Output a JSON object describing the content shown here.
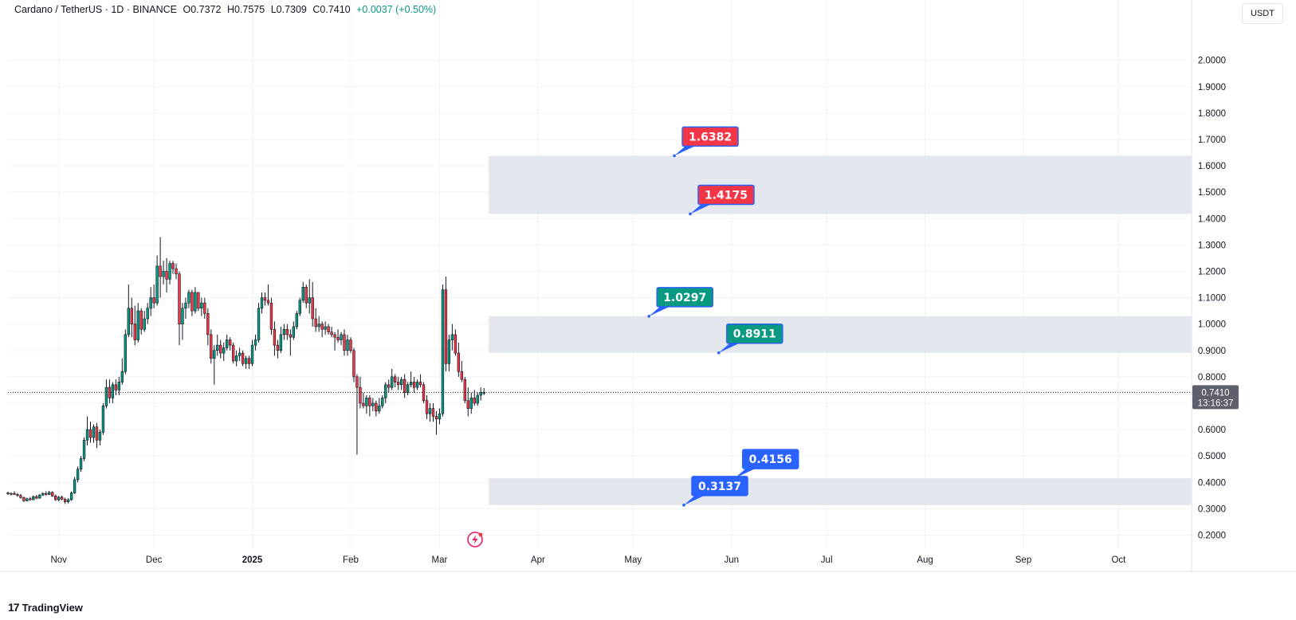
{
  "header": {
    "symbol": "Cardano / TetherUS · 1D · BINANCE",
    "open": "O0.7372",
    "high": "H0.7575",
    "low": "L0.7309",
    "close": "C0.7410",
    "change": "+0.0037 (+0.50%)"
  },
  "currency_button": "USDT",
  "brand": {
    "mark": "17",
    "name": "TradingView"
  },
  "price_tag": {
    "price": "0.7410",
    "countdown": "13:16:37"
  },
  "colors": {
    "up": "#089981",
    "down": "#f23645",
    "zone_fill": "#e0e3eb",
    "label_red": "#f23645",
    "label_green": "#089981",
    "label_blue": "#2962ff"
  },
  "chart_data": {
    "type": "candlestick",
    "title": "Cardano / TetherUS · 1D · BINANCE",
    "ylim": [
      0.15,
      2.15
    ],
    "y_ticks": [
      "2.0000",
      "1.9000",
      "1.8000",
      "1.7000",
      "1.6000",
      "1.5000",
      "1.4000",
      "1.3000",
      "1.2000",
      "1.1000",
      "1.0000",
      "0.9000",
      "0.8000",
      "0.7000",
      "0.6000",
      "0.5000",
      "0.4000",
      "0.3000",
      "0.2000"
    ],
    "x_start": "2024-10-16",
    "x_end": "2025-10-24",
    "x_ticks": [
      {
        "date": "2024-11-01",
        "label": "Nov"
      },
      {
        "date": "2024-12-01",
        "label": "Dec"
      },
      {
        "date": "2025-01-01",
        "label": "2025"
      },
      {
        "date": "2025-02-01",
        "label": "Feb"
      },
      {
        "date": "2025-03-01",
        "label": "Mar"
      },
      {
        "date": "2025-04-01",
        "label": "Apr"
      },
      {
        "date": "2025-05-01",
        "label": "May"
      },
      {
        "date": "2025-06-01",
        "label": "Jun"
      },
      {
        "date": "2025-07-01",
        "label": "Jul"
      },
      {
        "date": "2025-08-01",
        "label": "Aug"
      },
      {
        "date": "2025-09-01",
        "label": "Sep"
      },
      {
        "date": "2025-10-01",
        "label": "Oct"
      }
    ],
    "candles": [
      [
        "2024-10-16",
        0.36,
        0.365,
        0.352,
        0.356
      ],
      [
        "2024-10-17",
        0.356,
        0.362,
        0.35,
        0.358
      ],
      [
        "2024-10-18",
        0.358,
        0.366,
        0.352,
        0.354
      ],
      [
        "2024-10-19",
        0.354,
        0.36,
        0.345,
        0.35
      ],
      [
        "2024-10-20",
        0.35,
        0.356,
        0.338,
        0.342
      ],
      [
        "2024-10-21",
        0.342,
        0.346,
        0.326,
        0.33
      ],
      [
        "2024-10-22",
        0.33,
        0.342,
        0.328,
        0.338
      ],
      [
        "2024-10-23",
        0.338,
        0.345,
        0.33,
        0.334
      ],
      [
        "2024-10-24",
        0.334,
        0.35,
        0.332,
        0.346
      ],
      [
        "2024-10-25",
        0.346,
        0.352,
        0.336,
        0.34
      ],
      [
        "2024-10-26",
        0.34,
        0.356,
        0.338,
        0.352
      ],
      [
        "2024-10-27",
        0.352,
        0.362,
        0.348,
        0.358
      ],
      [
        "2024-10-28",
        0.358,
        0.366,
        0.35,
        0.354
      ],
      [
        "2024-10-29",
        0.354,
        0.368,
        0.352,
        0.362
      ],
      [
        "2024-10-30",
        0.362,
        0.366,
        0.345,
        0.348
      ],
      [
        "2024-10-31",
        0.348,
        0.354,
        0.33,
        0.334
      ],
      [
        "2024-11-01",
        0.334,
        0.348,
        0.328,
        0.344
      ],
      [
        "2024-11-02",
        0.344,
        0.35,
        0.332,
        0.336
      ],
      [
        "2024-11-03",
        0.336,
        0.342,
        0.318,
        0.326
      ],
      [
        "2024-11-04",
        0.326,
        0.34,
        0.32,
        0.334
      ],
      [
        "2024-11-05",
        0.334,
        0.366,
        0.33,
        0.36
      ],
      [
        "2024-11-06",
        0.36,
        0.42,
        0.356,
        0.41
      ],
      [
        "2024-11-07",
        0.41,
        0.46,
        0.4,
        0.45
      ],
      [
        "2024-11-08",
        0.45,
        0.5,
        0.44,
        0.49
      ],
      [
        "2024-11-09",
        0.49,
        0.57,
        0.48,
        0.56
      ],
      [
        "2024-11-10",
        0.56,
        0.65,
        0.54,
        0.6
      ],
      [
        "2024-11-11",
        0.6,
        0.63,
        0.55,
        0.57
      ],
      [
        "2024-11-12",
        0.57,
        0.62,
        0.55,
        0.61
      ],
      [
        "2024-11-13",
        0.61,
        0.625,
        0.53,
        0.56
      ],
      [
        "2024-11-14",
        0.56,
        0.6,
        0.54,
        0.59
      ],
      [
        "2024-11-15",
        0.59,
        0.7,
        0.58,
        0.69
      ],
      [
        "2024-11-16",
        0.69,
        0.79,
        0.68,
        0.76
      ],
      [
        "2024-11-17",
        0.76,
        0.79,
        0.7,
        0.72
      ],
      [
        "2024-11-18",
        0.72,
        0.78,
        0.7,
        0.77
      ],
      [
        "2024-11-19",
        0.77,
        0.79,
        0.73,
        0.75
      ],
      [
        "2024-11-20",
        0.75,
        0.8,
        0.73,
        0.78
      ],
      [
        "2024-11-21",
        0.78,
        0.87,
        0.77,
        0.82
      ],
      [
        "2024-11-22",
        0.82,
        0.98,
        0.81,
        0.96
      ],
      [
        "2024-11-23",
        0.96,
        1.15,
        0.95,
        1.06
      ],
      [
        "2024-11-24",
        1.06,
        1.1,
        0.95,
        1.0
      ],
      [
        "2024-11-25",
        1.0,
        1.07,
        0.92,
        0.94
      ],
      [
        "2024-11-26",
        0.94,
        1.08,
        0.93,
        1.05
      ],
      [
        "2024-11-27",
        1.05,
        1.06,
        0.96,
        0.98
      ],
      [
        "2024-11-28",
        0.98,
        1.05,
        0.97,
        1.02
      ],
      [
        "2024-11-29",
        1.02,
        1.08,
        1.0,
        1.06
      ],
      [
        "2024-11-30",
        1.06,
        1.14,
        1.03,
        1.1
      ],
      [
        "2024-12-01",
        1.1,
        1.15,
        1.06,
        1.08
      ],
      [
        "2024-12-02",
        1.08,
        1.26,
        1.07,
        1.22
      ],
      [
        "2024-12-03",
        1.22,
        1.33,
        1.1,
        1.18
      ],
      [
        "2024-12-04",
        1.18,
        1.24,
        1.15,
        1.2
      ],
      [
        "2024-12-05",
        1.2,
        1.25,
        1.12,
        1.17
      ],
      [
        "2024-12-06",
        1.17,
        1.24,
        1.15,
        1.23
      ],
      [
        "2024-12-07",
        1.23,
        1.24,
        1.19,
        1.21
      ],
      [
        "2024-12-08",
        1.21,
        1.23,
        1.17,
        1.19
      ],
      [
        "2024-12-09",
        1.19,
        1.2,
        0.92,
        1.0
      ],
      [
        "2024-12-10",
        1.0,
        1.08,
        0.94,
        1.06
      ],
      [
        "2024-12-11",
        1.06,
        1.1,
        1.02,
        1.08
      ],
      [
        "2024-12-12",
        1.08,
        1.13,
        1.06,
        1.12
      ],
      [
        "2024-12-13",
        1.12,
        1.13,
        1.03,
        1.05
      ],
      [
        "2024-12-14",
        1.05,
        1.14,
        1.04,
        1.12
      ],
      [
        "2024-12-15",
        1.12,
        1.12,
        1.05,
        1.06
      ],
      [
        "2024-12-16",
        1.06,
        1.1,
        1.03,
        1.08
      ],
      [
        "2024-12-17",
        1.08,
        1.1,
        1.02,
        1.04
      ],
      [
        "2024-12-18",
        1.04,
        1.06,
        0.92,
        0.96
      ],
      [
        "2024-12-19",
        0.96,
        0.98,
        0.85,
        0.87
      ],
      [
        "2024-12-20",
        0.87,
        0.92,
        0.77,
        0.9
      ],
      [
        "2024-12-21",
        0.9,
        0.96,
        0.88,
        0.92
      ],
      [
        "2024-12-22",
        0.92,
        0.94,
        0.87,
        0.89
      ],
      [
        "2024-12-23",
        0.89,
        0.93,
        0.86,
        0.91
      ],
      [
        "2024-12-24",
        0.91,
        0.96,
        0.9,
        0.94
      ],
      [
        "2024-12-25",
        0.94,
        0.95,
        0.9,
        0.92
      ],
      [
        "2024-12-26",
        0.92,
        0.93,
        0.85,
        0.86
      ],
      [
        "2024-12-27",
        0.86,
        0.9,
        0.84,
        0.88
      ],
      [
        "2024-12-28",
        0.88,
        0.91,
        0.86,
        0.89
      ],
      [
        "2024-12-29",
        0.89,
        0.9,
        0.84,
        0.85
      ],
      [
        "2024-12-30",
        0.85,
        0.88,
        0.83,
        0.87
      ],
      [
        "2024-12-31",
        0.87,
        0.88,
        0.83,
        0.85
      ],
      [
        "2025-01-01",
        0.85,
        0.94,
        0.84,
        0.92
      ],
      [
        "2025-01-02",
        0.92,
        0.96,
        0.9,
        0.94
      ],
      [
        "2025-01-03",
        0.94,
        1.08,
        0.93,
        1.06
      ],
      [
        "2025-01-04",
        1.06,
        1.12,
        1.04,
        1.1
      ],
      [
        "2025-01-05",
        1.1,
        1.12,
        1.07,
        1.09
      ],
      [
        "2025-01-06",
        1.09,
        1.15,
        1.07,
        1.08
      ],
      [
        "2025-01-07",
        1.08,
        1.1,
        0.96,
        0.98
      ],
      [
        "2025-01-08",
        0.98,
        1.01,
        0.88,
        0.92
      ],
      [
        "2025-01-09",
        0.92,
        0.94,
        0.87,
        0.9
      ],
      [
        "2025-01-10",
        0.9,
        0.99,
        0.89,
        0.96
      ],
      [
        "2025-01-11",
        0.96,
        1.0,
        0.94,
        0.98
      ],
      [
        "2025-01-12",
        0.98,
        1.0,
        0.94,
        0.96
      ],
      [
        "2025-01-13",
        0.96,
        0.98,
        0.88,
        0.95
      ],
      [
        "2025-01-14",
        0.95,
        1.01,
        0.94,
        0.99
      ],
      [
        "2025-01-15",
        0.99,
        1.05,
        0.98,
        1.04
      ],
      [
        "2025-01-16",
        1.04,
        1.1,
        1.03,
        1.09
      ],
      [
        "2025-01-17",
        1.09,
        1.16,
        1.08,
        1.14
      ],
      [
        "2025-01-18",
        1.14,
        1.15,
        1.06,
        1.08
      ],
      [
        "2025-01-19",
        1.08,
        1.17,
        1.04,
        1.1
      ],
      [
        "2025-01-20",
        1.1,
        1.16,
        0.99,
        1.02
      ],
      [
        "2025-01-21",
        1.02,
        1.06,
        0.97,
        0.99
      ],
      [
        "2025-01-22",
        0.99,
        1.03,
        0.97,
        1.0
      ],
      [
        "2025-01-23",
        1.0,
        1.01,
        0.95,
        0.98
      ],
      [
        "2025-01-24",
        0.98,
        1.01,
        0.96,
        0.99
      ],
      [
        "2025-01-25",
        0.99,
        1.0,
        0.96,
        0.97
      ],
      [
        "2025-01-26",
        0.97,
        0.99,
        0.95,
        0.96
      ],
      [
        "2025-01-27",
        0.96,
        0.97,
        0.9,
        0.95
      ],
      [
        "2025-01-28",
        0.95,
        0.98,
        0.93,
        0.94
      ],
      [
        "2025-01-29",
        0.94,
        0.97,
        0.92,
        0.96
      ],
      [
        "2025-01-30",
        0.96,
        0.98,
        0.88,
        0.9
      ],
      [
        "2025-01-31",
        0.9,
        0.96,
        0.88,
        0.94
      ],
      [
        "2025-02-01",
        0.94,
        0.95,
        0.89,
        0.9
      ],
      [
        "2025-02-02",
        0.9,
        0.91,
        0.78,
        0.8
      ],
      [
        "2025-02-03",
        0.8,
        0.81,
        0.505,
        0.76
      ],
      [
        "2025-02-04",
        0.76,
        0.8,
        0.68,
        0.7
      ],
      [
        "2025-02-05",
        0.7,
        0.74,
        0.68,
        0.69
      ],
      [
        "2025-02-06",
        0.69,
        0.73,
        0.66,
        0.72
      ],
      [
        "2025-02-07",
        0.72,
        0.73,
        0.65,
        0.69
      ],
      [
        "2025-02-08",
        0.69,
        0.72,
        0.67,
        0.7
      ],
      [
        "2025-02-09",
        0.7,
        0.71,
        0.65,
        0.67
      ],
      [
        "2025-02-10",
        0.67,
        0.72,
        0.66,
        0.69
      ],
      [
        "2025-02-11",
        0.69,
        0.73,
        0.68,
        0.72
      ],
      [
        "2025-02-12",
        0.72,
        0.78,
        0.7,
        0.77
      ],
      [
        "2025-02-13",
        0.77,
        0.79,
        0.74,
        0.76
      ],
      [
        "2025-02-14",
        0.76,
        0.83,
        0.75,
        0.8
      ],
      [
        "2025-02-15",
        0.8,
        0.81,
        0.76,
        0.78
      ],
      [
        "2025-02-16",
        0.78,
        0.8,
        0.75,
        0.77
      ],
      [
        "2025-02-17",
        0.77,
        0.8,
        0.75,
        0.79
      ],
      [
        "2025-02-18",
        0.79,
        0.81,
        0.72,
        0.74
      ],
      [
        "2025-02-19",
        0.74,
        0.78,
        0.73,
        0.77
      ],
      [
        "2025-02-20",
        0.77,
        0.82,
        0.76,
        0.78
      ],
      [
        "2025-02-21",
        0.78,
        0.8,
        0.74,
        0.76
      ],
      [
        "2025-02-22",
        0.76,
        0.79,
        0.75,
        0.78
      ],
      [
        "2025-02-23",
        0.78,
        0.81,
        0.76,
        0.77
      ],
      [
        "2025-02-24",
        0.77,
        0.78,
        0.7,
        0.71
      ],
      [
        "2025-02-25",
        0.71,
        0.73,
        0.64,
        0.66
      ],
      [
        "2025-02-26",
        0.66,
        0.7,
        0.63,
        0.68
      ],
      [
        "2025-02-27",
        0.68,
        0.7,
        0.63,
        0.65
      ],
      [
        "2025-02-28",
        0.65,
        0.67,
        0.58,
        0.64
      ],
      [
        "2025-03-01",
        0.64,
        0.68,
        0.62,
        0.66
      ],
      [
        "2025-03-02",
        0.66,
        1.15,
        0.65,
        1.13
      ],
      [
        "2025-03-03",
        1.13,
        1.18,
        0.82,
        0.85
      ],
      [
        "2025-03-04",
        0.85,
        0.96,
        0.82,
        0.94
      ],
      [
        "2025-03-05",
        0.94,
        1.0,
        0.9,
        0.96
      ],
      [
        "2025-03-06",
        0.96,
        0.98,
        0.88,
        0.89
      ],
      [
        "2025-03-07",
        0.89,
        0.93,
        0.8,
        0.82
      ],
      [
        "2025-03-08",
        0.82,
        0.86,
        0.78,
        0.79
      ],
      [
        "2025-03-09",
        0.79,
        0.8,
        0.7,
        0.71
      ],
      [
        "2025-03-10",
        0.71,
        0.76,
        0.65,
        0.68
      ],
      [
        "2025-03-11",
        0.68,
        0.74,
        0.66,
        0.72
      ],
      [
        "2025-03-12",
        0.72,
        0.75,
        0.69,
        0.7
      ],
      [
        "2025-03-13",
        0.7,
        0.74,
        0.69,
        0.73
      ],
      [
        "2025-03-14",
        0.73,
        0.76,
        0.71,
        0.74
      ],
      [
        "2025-03-15",
        0.7372,
        0.7575,
        0.7309,
        0.741
      ]
    ],
    "last_price": 0.741,
    "zones": [
      {
        "low": 1.4175,
        "high": 1.6382
      },
      {
        "low": 0.8911,
        "high": 1.0297
      },
      {
        "low": 0.3137,
        "high": 0.4156
      }
    ],
    "price_labels": [
      {
        "text": "1.6382",
        "value": 1.6382,
        "anchor_date": "2025-05-14",
        "color": "red"
      },
      {
        "text": "1.4175",
        "value": 1.4175,
        "anchor_date": "2025-05-19",
        "color": "red"
      },
      {
        "text": "1.0297",
        "value": 1.0297,
        "anchor_date": "2025-05-06",
        "color": "green"
      },
      {
        "text": "0.8911",
        "value": 0.8911,
        "anchor_date": "2025-05-28",
        "color": "green"
      },
      {
        "text": "0.4156",
        "value": 0.4156,
        "anchor_date": "2025-06-02",
        "color": "blue"
      },
      {
        "text": "0.3137",
        "value": 0.3137,
        "anchor_date": "2025-05-17",
        "color": "blue"
      }
    ]
  }
}
